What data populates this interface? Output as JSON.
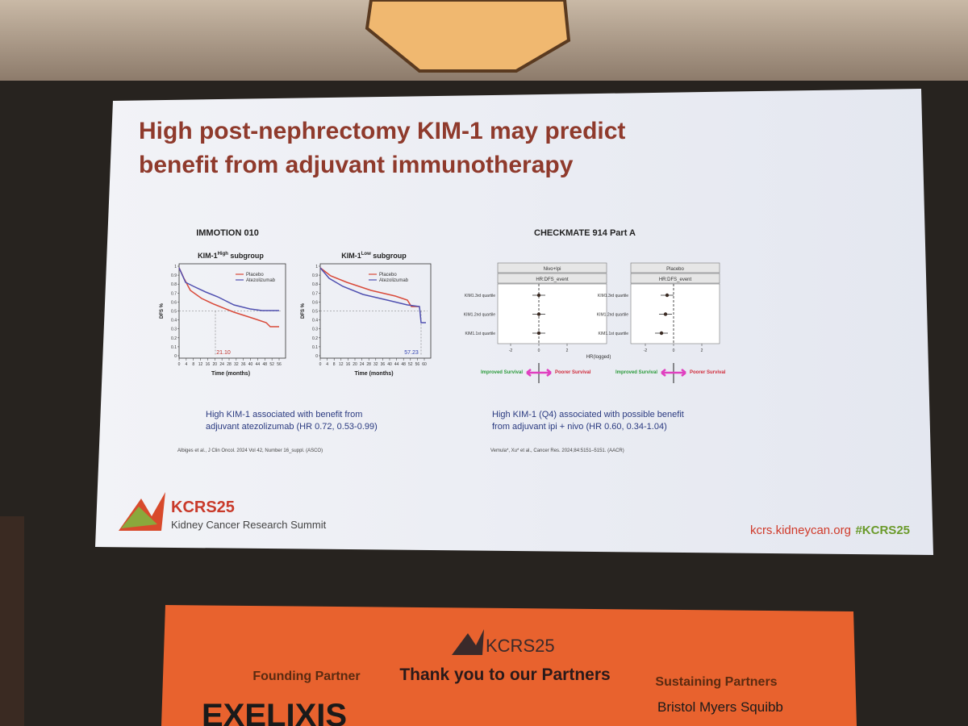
{
  "slide": {
    "title_lines": [
      "High post-nephrectomy KIM-1 may predict",
      "benefit from adjuvant immunotherapy"
    ],
    "left": {
      "heading": "IMMOTION 010",
      "plots": [
        {
          "subgroup": {
            "prefix": "KIM-1",
            "sup": "High",
            "suffix": " subgroup"
          },
          "legend": [
            "Placebo",
            "Atezolizumab"
          ],
          "y_label": "DFS %",
          "x_label": "Time (months)",
          "yticks": [
            0,
            0.1,
            0.2,
            0.3,
            0.4,
            0.5,
            0.6,
            0.7,
            0.8,
            0.9,
            1
          ],
          "xticks": [
            0,
            4,
            8,
            12,
            16,
            20,
            24,
            28,
            32,
            36,
            40,
            44,
            48,
            52,
            56
          ],
          "median": "21.10"
        },
        {
          "subgroup": {
            "prefix": "KIM-1",
            "sup": "Low",
            "suffix": " subgroup"
          },
          "legend": [
            "Placebo",
            "Atezolizumab"
          ],
          "y_label": "DFS %",
          "x_label": "Time (months)",
          "yticks": [
            0,
            0.1,
            0.2,
            0.3,
            0.4,
            0.5,
            0.6,
            0.7,
            0.8,
            0.9,
            1
          ],
          "xticks": [
            0,
            4,
            8,
            12,
            16,
            20,
            24,
            28,
            32,
            36,
            40,
            44,
            48,
            52,
            56,
            60
          ],
          "median": "57.23"
        }
      ],
      "summary_lines": [
        "High KIM-1 associated with benefit from",
        "adjuvant atezolizumab (HR 0.72, 0.53-0.99)"
      ],
      "citation": "Albiges et al., J Clin Oncol. 2024 Vol 42, Number 16_suppl. (ASCO)"
    },
    "right": {
      "heading": "CHECKMATE 914 Part A",
      "plots": [
        {
          "arm": "Nivo+Ipi",
          "measure": "HR:DFS_event",
          "rows": [
            "KIM1.3rd quartile",
            "KIM1.2nd quartile",
            "KIM1.1st quartile"
          ],
          "xticks": [
            -2,
            0,
            2
          ]
        },
        {
          "arm": "Placebo",
          "measure": "HR:DFS_event",
          "rows": [
            "KIM1.3rd quartile",
            "KIM1.2nd quartile",
            "KIM1.1st quartile"
          ],
          "xticks": [
            -2,
            0,
            2
          ]
        }
      ],
      "x_label": "HR(logged)",
      "improved": "Improved Survival",
      "poorer": "Poorer Survival",
      "summary_lines": [
        "High KIM-1 (Q4) associated with possible benefit",
        "from adjuvant ipi + nivo (HR 0.60, 0.34-1.04)"
      ],
      "citation": "Vemula*, Xu* et al., Cancer Res. 2024;84:5151–5151. (AACR)"
    },
    "footer": {
      "logo": "KCRS25",
      "summit": "Kidney Cancer Research Summit",
      "url": "kcrs.kidneycan.org",
      "hashtag": "#KCRS25"
    }
  },
  "banner": {
    "logo": "KCRS25",
    "thanks": "Thank you to our Partners",
    "founding": "Founding Partner",
    "sustaining": "Sustaining Partners",
    "founding_sponsor": "EXELIXIS",
    "sustaining_sponsor": "Bristol Myers Squibb"
  }
}
